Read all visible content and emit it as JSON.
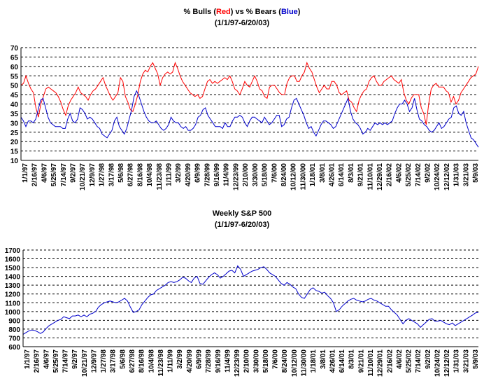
{
  "colors": {
    "bulls": "#ff0000",
    "bears": "#0000cc",
    "sp500": "#0000cc",
    "text": "#000000"
  },
  "chart_data": [
    {
      "type": "line",
      "title_parts": [
        {
          "text": "% Bulls (",
          "color": "#000000"
        },
        {
          "text": "Red",
          "color": "#ff0000"
        },
        {
          "text": ") vs % Bears (",
          "color": "#000000"
        },
        {
          "text": "Blue",
          "color": "#0000cc"
        },
        {
          "text": ")",
          "color": "#000000"
        }
      ],
      "subtitle": "(1/1/97-6/20/03)",
      "ylim": [
        10,
        70
      ],
      "yticks": [
        10,
        15,
        20,
        25,
        30,
        35,
        40,
        45,
        50,
        55,
        60,
        65,
        70
      ],
      "grid": true,
      "xtick_labels": [
        "1/1/97",
        "2/16/97",
        "4/6/97",
        "5/25/97",
        "7/14/97",
        "9/2/97",
        "10/21/97",
        "12/9/97",
        "1/27/98",
        "3/17/98",
        "5/6/98",
        "6/27/98",
        "8/16/98",
        "10/4/98",
        "11/23/98",
        "1/11/99",
        "3/2/99",
        "4/20/99",
        "6/9/99",
        "7/28/99",
        "9/16/99",
        "11/4/99",
        "12/23/99",
        "2/10/00",
        "3/30/00",
        "5/18/00",
        "7/6/00",
        "8/24/00",
        "10/12/00",
        "11/30/00",
        "1/18/01",
        "3/8/01",
        "4/26/01",
        "6/14/01",
        "8/3/01",
        "9/21/01",
        "11/10/01",
        "12/29/01",
        "2/16/02",
        "4/6/02",
        "5/25/02",
        "7/14/02",
        "9/2/02",
        "10/24/02",
        "12/12/02",
        "1/31/03",
        "3/21/03",
        "5/9/03"
      ],
      "series": [
        {
          "name": "Bulls",
          "color": "#ff0000",
          "values": [
            50,
            51,
            55,
            51,
            48,
            46,
            38,
            33,
            40,
            44,
            48,
            49,
            48,
            47,
            46,
            44,
            41,
            37,
            34,
            39,
            42,
            44,
            46,
            49,
            46,
            45,
            44,
            42,
            45,
            47,
            48,
            50,
            52,
            54,
            50,
            47,
            44,
            42,
            44,
            46,
            54,
            52,
            44,
            41,
            37,
            36,
            40,
            45,
            52,
            56,
            58,
            57,
            60,
            62,
            59,
            56,
            50,
            54,
            56,
            57,
            56,
            57,
            62,
            59,
            55,
            52,
            50,
            48,
            46,
            45,
            44,
            45,
            43,
            44,
            48,
            52,
            53,
            51,
            52,
            51,
            52,
            53,
            54,
            53,
            55,
            52,
            48,
            47,
            45,
            48,
            52,
            50,
            49,
            52,
            55,
            52,
            48,
            47,
            44,
            43,
            49,
            50,
            50,
            48,
            46,
            45,
            45,
            51,
            54,
            55,
            55,
            52,
            52,
            55,
            57,
            62,
            59,
            57,
            53,
            49,
            46,
            48,
            50,
            48,
            48,
            52,
            52,
            50,
            46,
            45,
            46,
            47,
            42,
            41,
            38,
            36,
            42,
            45,
            47,
            48,
            52,
            54,
            55,
            52,
            50,
            50,
            52,
            53,
            54,
            55,
            53,
            52,
            51,
            53,
            46,
            42,
            40,
            43,
            45,
            45,
            45,
            38,
            35,
            29,
            40,
            48,
            50,
            51,
            49,
            49,
            49,
            47,
            46,
            41,
            44,
            40,
            42,
            46,
            48,
            50,
            52,
            54,
            55,
            56,
            60
          ]
        },
        {
          "name": "Bears",
          "color": "#0000cc",
          "values": [
            33,
            31,
            28,
            31,
            31,
            30,
            32,
            37,
            42,
            43,
            38,
            33,
            30,
            29,
            28,
            28,
            28,
            27,
            27,
            32,
            35,
            31,
            30,
            32,
            38,
            37,
            35,
            32,
            33,
            32,
            30,
            28,
            27,
            24,
            23,
            22,
            24,
            26,
            31,
            33,
            28,
            26,
            24,
            27,
            32,
            37,
            44,
            47,
            44,
            40,
            36,
            33,
            31,
            30,
            30,
            31,
            29,
            27,
            26,
            27,
            29,
            33,
            31,
            30,
            30,
            28,
            27,
            28,
            26,
            26,
            27,
            29,
            33,
            34,
            37,
            38,
            34,
            32,
            30,
            28,
            28,
            28,
            27,
            30,
            28,
            28,
            31,
            33,
            33,
            34,
            33,
            30,
            28,
            31,
            33,
            33,
            32,
            31,
            30,
            33,
            31,
            29,
            30,
            32,
            34,
            34,
            28,
            29,
            32,
            33,
            38,
            42,
            43,
            40,
            37,
            34,
            30,
            27,
            28,
            25,
            23,
            26,
            29,
            31,
            31,
            30,
            29,
            27,
            28,
            31,
            34,
            37,
            40,
            43,
            36,
            32,
            30,
            29,
            27,
            24,
            25,
            27,
            26,
            28,
            30,
            29,
            30,
            29,
            30,
            29,
            30,
            31,
            35,
            38,
            40,
            40,
            42,
            40,
            36,
            38,
            43,
            37,
            32,
            31,
            29,
            28,
            26,
            25,
            26,
            28,
            30,
            27,
            28,
            30,
            32,
            33,
            38,
            39,
            35,
            34,
            36,
            30,
            26,
            22,
            21,
            19,
            17
          ]
        }
      ]
    },
    {
      "type": "line",
      "title": "Weekly S&P 500",
      "subtitle": "(1/1/97-6/20/03)",
      "ylim": [
        600,
        1700
      ],
      "yticks": [
        600,
        700,
        800,
        900,
        1000,
        1100,
        1200,
        1300,
        1400,
        1500,
        1600,
        1700
      ],
      "grid": true,
      "xtick_labels": [
        "1/1/97",
        "2/16/97",
        "4/6/97",
        "5/25/97",
        "7/14/97",
        "9/2/97",
        "10/21/97",
        "12/9/97",
        "1/27/98",
        "3/17/98",
        "5/6/98",
        "6/27/98",
        "8/16/98",
        "10/4/98",
        "11/23/98",
        "1/11/99",
        "3/2/99",
        "4/20/99",
        "6/9/99",
        "7/28/99",
        "9/16/99",
        "11/4/99",
        "12/23/99",
        "2/10/00",
        "3/30/00",
        "5/18/00",
        "7/6/00",
        "8/24/00",
        "10/12/00",
        "11/30/00",
        "1/18/01",
        "3/8/01",
        "4/26/01",
        "6/14/01",
        "8/3/01",
        "9/21/01",
        "11/10/01",
        "12/29/01",
        "2/16/02",
        "4/6/02",
        "5/25/02",
        "7/14/02",
        "9/2/02",
        "10/24/02",
        "12/12/02",
        "1/31/03",
        "3/21/03",
        "5/9/03"
      ],
      "series": [
        {
          "name": "S&P 500",
          "color": "#0000cc",
          "values": [
            740,
            760,
            780,
            790,
            785,
            770,
            750,
            770,
            810,
            840,
            860,
            880,
            900,
            910,
            940,
            930,
            920,
            950,
            950,
            960,
            940,
            960,
            940,
            970,
            980,
            1000,
            1050,
            1080,
            1100,
            1110,
            1120,
            1110,
            1100,
            1110,
            1130,
            1150,
            1120,
            1050,
            990,
            1000,
            1020,
            1080,
            1120,
            1160,
            1190,
            1200,
            1240,
            1260,
            1280,
            1300,
            1330,
            1340,
            1330,
            1340,
            1360,
            1390,
            1380,
            1350,
            1330,
            1380,
            1400,
            1320,
            1310,
            1350,
            1390,
            1420,
            1440,
            1420,
            1380,
            1400,
            1430,
            1460,
            1470,
            1440,
            1520,
            1480,
            1400,
            1420,
            1440,
            1460,
            1470,
            1480,
            1500,
            1510,
            1480,
            1440,
            1420,
            1400,
            1360,
            1320,
            1300,
            1330,
            1310,
            1280,
            1260,
            1200,
            1160,
            1150,
            1200,
            1250,
            1270,
            1240,
            1230,
            1210,
            1220,
            1180,
            1150,
            1100,
            1000,
            1020,
            1060,
            1090,
            1120,
            1140,
            1150,
            1130,
            1120,
            1110,
            1120,
            1140,
            1150,
            1130,
            1120,
            1100,
            1080,
            1060,
            1060,
            1020,
            990,
            960,
            910,
            860,
            900,
            920,
            900,
            880,
            860,
            820,
            850,
            880,
            910,
            920,
            890,
            890,
            900,
            880,
            860,
            850,
            870,
            840,
            860,
            880,
            900,
            920,
            940,
            960,
            985,
            990
          ]
        }
      ]
    }
  ]
}
